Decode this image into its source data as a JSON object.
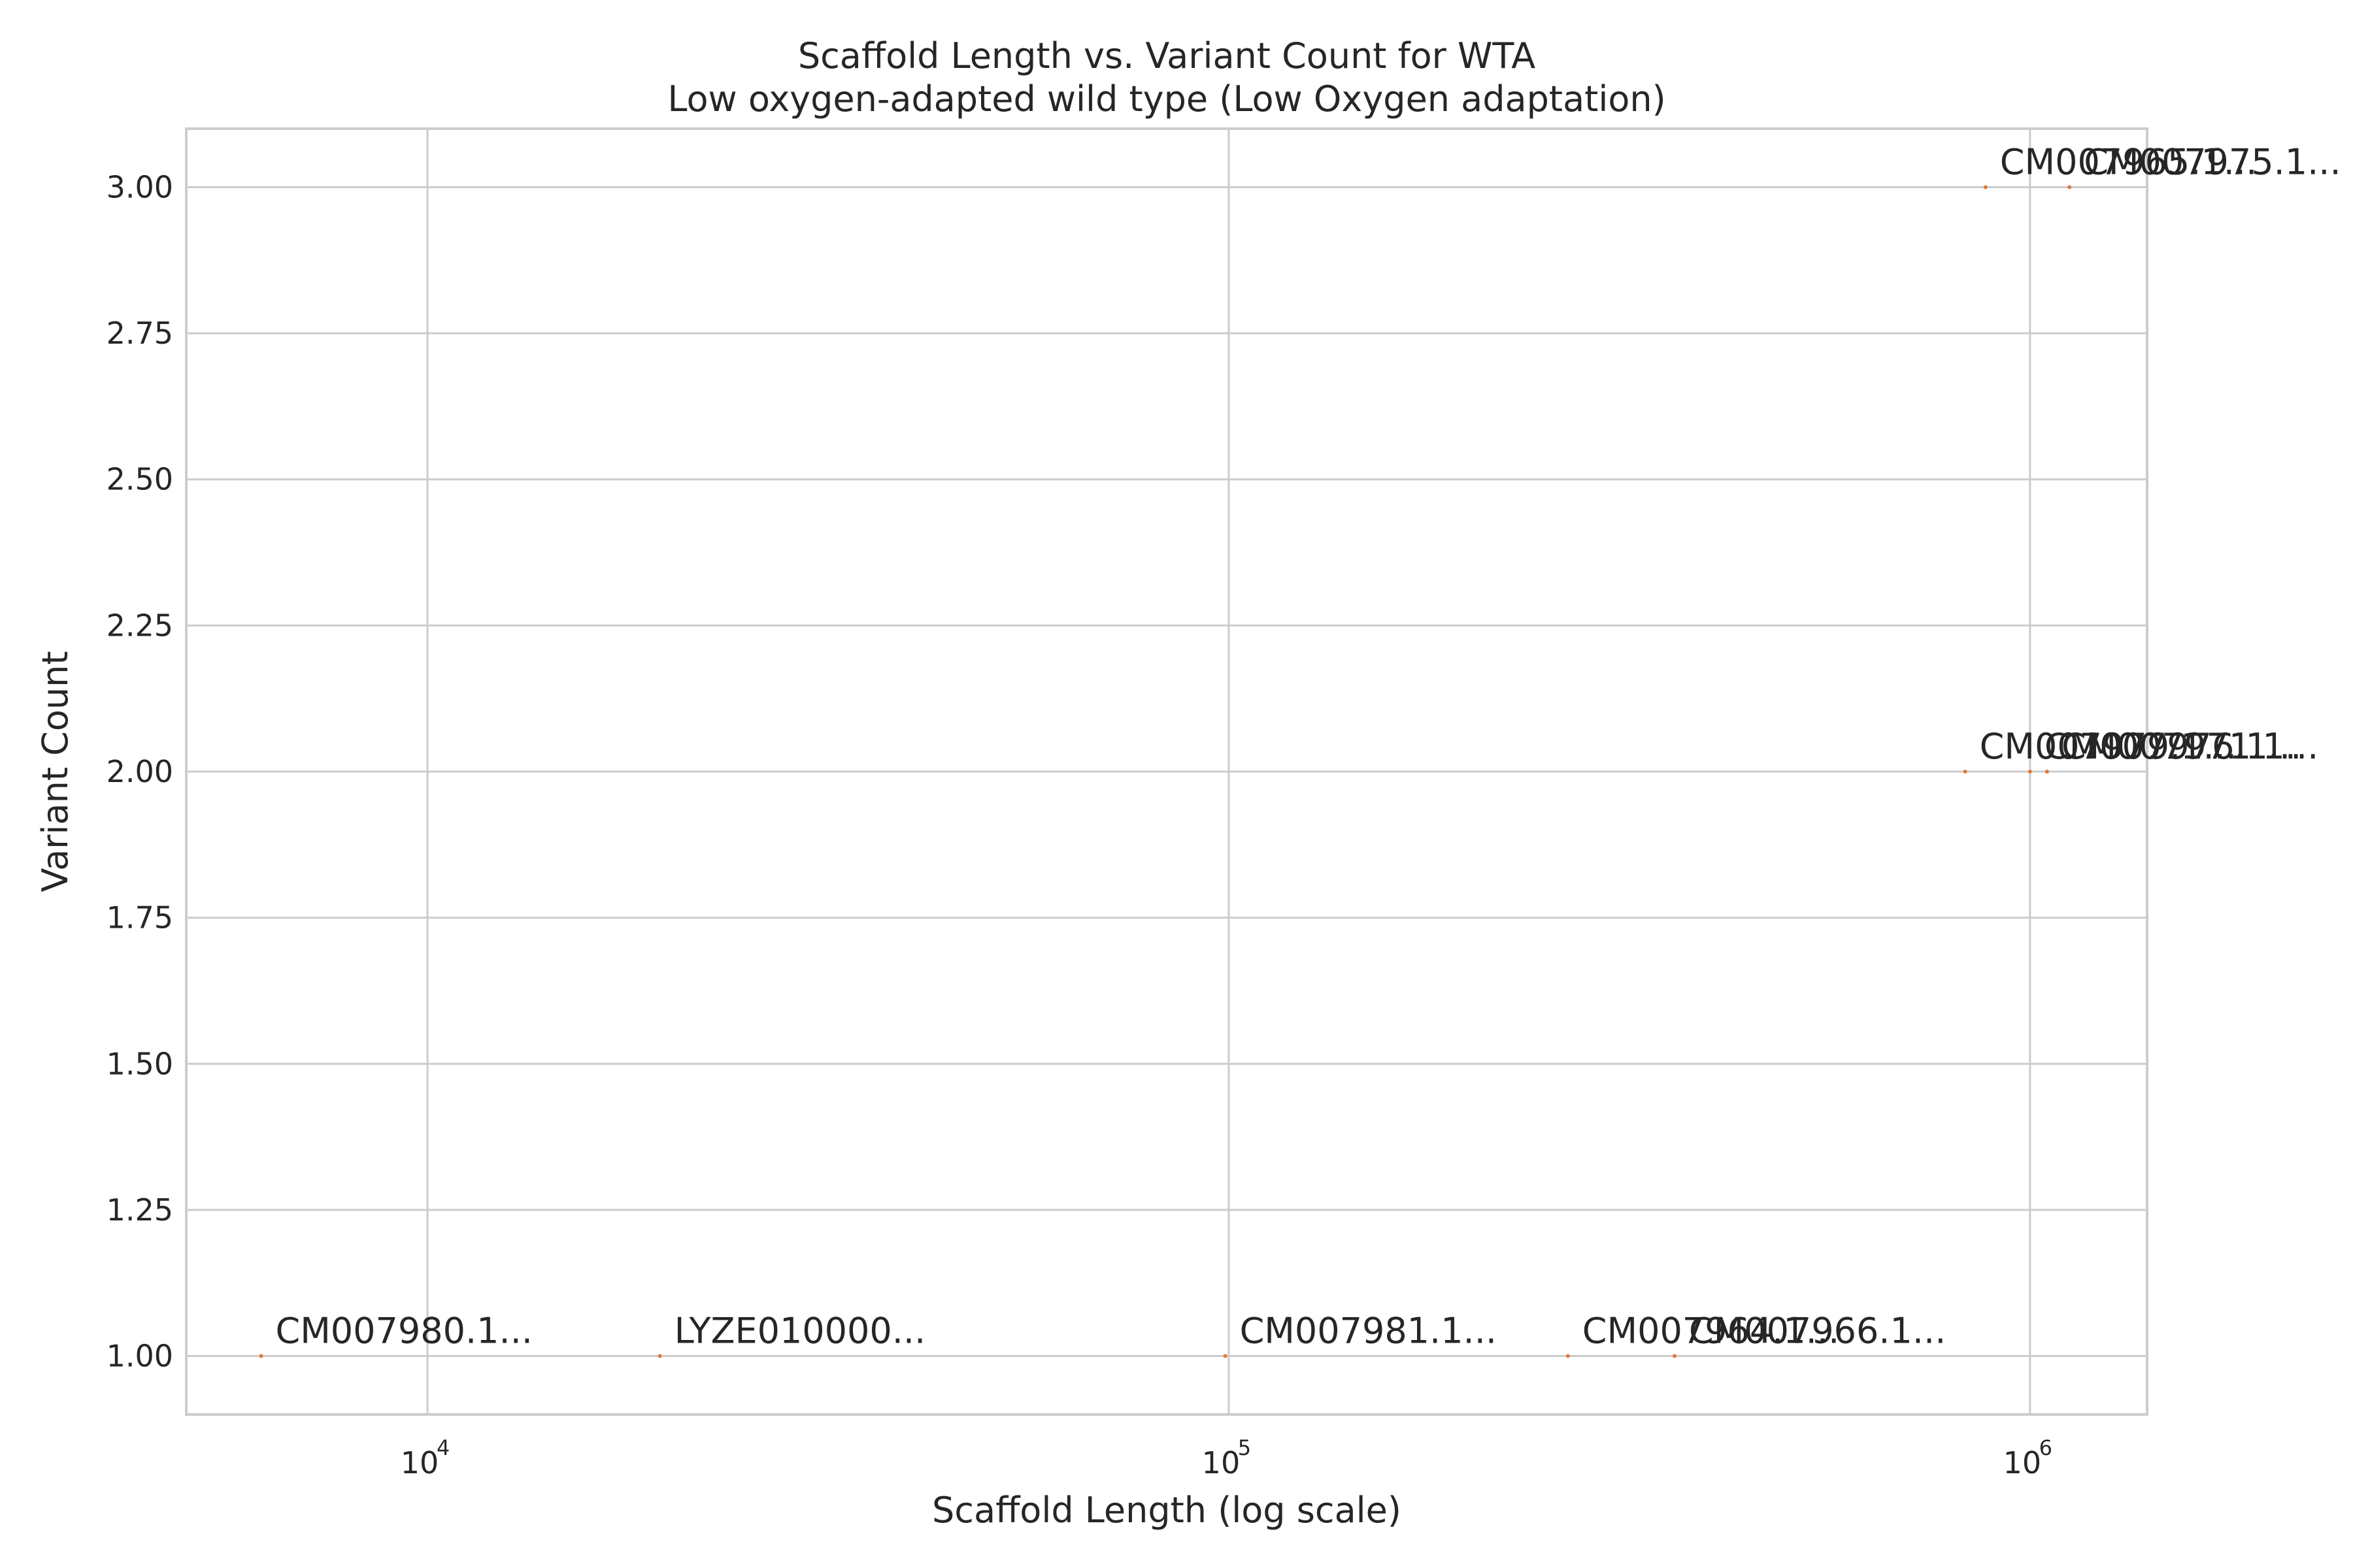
{
  "chart_data": {
    "type": "scatter",
    "title": "Scaffold Length vs. Variant Count for WTA",
    "subtitle": "Low oxygen-adapted wild type (Low Oxygen adaptation)",
    "xlabel": "Scaffold Length (log scale)",
    "ylabel": "Variant Count",
    "xscale": "log",
    "xlim": [
      5000,
      1400000
    ],
    "ylim": [
      0.9,
      3.1
    ],
    "grid": true,
    "x_ticks": [
      {
        "value": 10000,
        "base": "10",
        "exp": "4"
      },
      {
        "value": 100000,
        "base": "10",
        "exp": "5"
      },
      {
        "value": 1000000,
        "base": "10",
        "exp": "6"
      }
    ],
    "y_ticks": [
      {
        "value": 1.0,
        "label": "1.00"
      },
      {
        "value": 1.25,
        "label": "1.25"
      },
      {
        "value": 1.5,
        "label": "1.50"
      },
      {
        "value": 1.75,
        "label": "1.75"
      },
      {
        "value": 2.0,
        "label": "2.00"
      },
      {
        "value": 2.25,
        "label": "2.25"
      },
      {
        "value": 2.5,
        "label": "2.50"
      },
      {
        "value": 2.75,
        "label": "2.75"
      },
      {
        "value": 3.0,
        "label": "3.00"
      }
    ],
    "point_color": "#e07b39",
    "points": [
      {
        "x": 6200,
        "y": 1,
        "label": "CM007980.1..."
      },
      {
        "x": 19500,
        "y": 1,
        "label": "LYZE010000..."
      },
      {
        "x": 99000,
        "y": 1,
        "label": "CM007981.1..."
      },
      {
        "x": 265000,
        "y": 1,
        "label": "CM007964.1..."
      },
      {
        "x": 360000,
        "y": 1,
        "label": "CM007966.1..."
      },
      {
        "x": 830000,
        "y": 2,
        "label": "CM007979.1..."
      },
      {
        "x": 1000000,
        "y": 2,
        "label": "CM007976.1..."
      },
      {
        "x": 1050000,
        "y": 2,
        "label": "CM007971.1..."
      },
      {
        "x": 880000,
        "y": 3,
        "label": "CM007965.1..."
      },
      {
        "x": 1120000,
        "y": 3,
        "label": "CM007975.1..."
      }
    ]
  }
}
